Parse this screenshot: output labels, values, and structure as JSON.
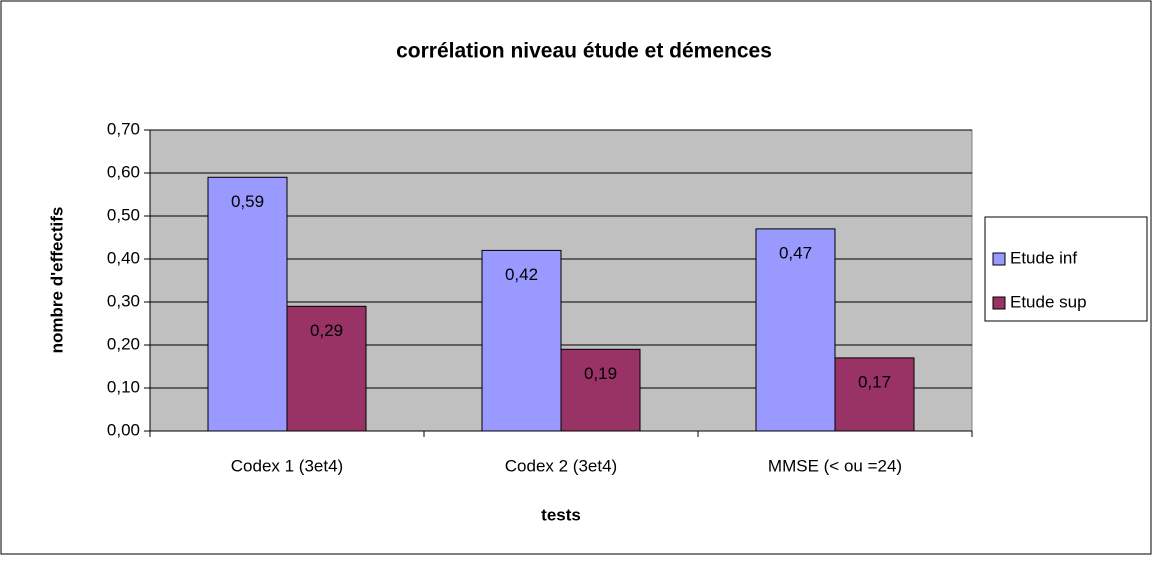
{
  "chart_data": {
    "type": "bar",
    "title": "corrélation niveau étude et démences",
    "x_label": "tests",
    "y_label": "nombre d'effectifs",
    "categories": [
      "Codex 1 (3et4)",
      "Codex 2 (3et4)",
      "MMSE (< ou =24)"
    ],
    "series": [
      {
        "name": "Etude inf",
        "color": "#9999ff",
        "values": [
          0.59,
          0.42,
          0.47
        ],
        "value_labels": [
          "0,59",
          "0,42",
          "0,47"
        ]
      },
      {
        "name": "Etude sup",
        "color": "#993366",
        "values": [
          0.29,
          0.19,
          0.17
        ],
        "value_labels": [
          "0,29",
          "0,19",
          "0,17"
        ]
      }
    ],
    "ylim": [
      0,
      0.7
    ],
    "yticks": [
      {
        "value": 0,
        "label": "0,00"
      },
      {
        "value": 0.1,
        "label": "0,10"
      },
      {
        "value": 0.2,
        "label": "0,20"
      },
      {
        "value": 0.3,
        "label": "0,30"
      },
      {
        "value": 0.4,
        "label": "0,40"
      },
      {
        "value": 0.5,
        "label": "0,50"
      },
      {
        "value": 0.6,
        "label": "0,60"
      },
      {
        "value": 0.7,
        "label": "0,70"
      }
    ],
    "grid": true,
    "legend": "right",
    "plot_background": "#c0c0c0"
  }
}
